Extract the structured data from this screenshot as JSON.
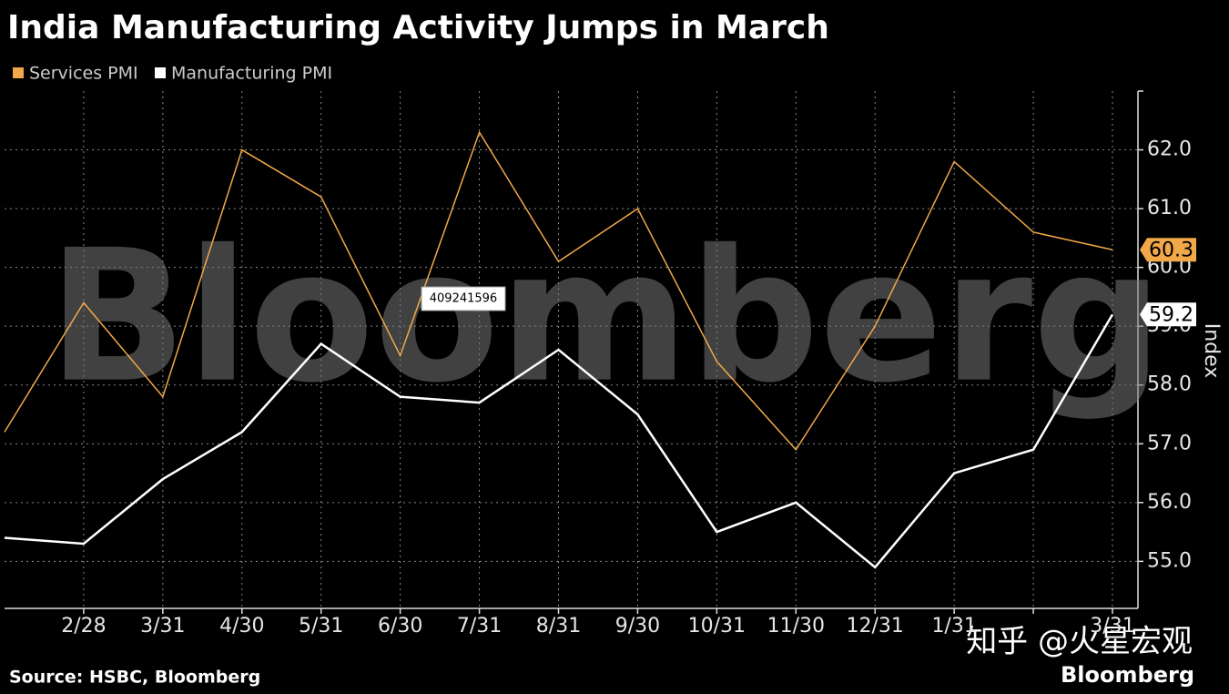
{
  "chart_data": {
    "type": "line",
    "title": "India Manufacturing Activity Jumps in March",
    "y_label": "Index",
    "source": "Source: HSBC, Bloomberg",
    "watermark": "Bloomberg",
    "logo": "Bloomberg",
    "annotations": [
      "409241596",
      "知乎 @火星宏观"
    ],
    "categories": [
      null,
      "2/28",
      "3/31",
      "4/30",
      "5/31",
      "6/30",
      "7/31",
      "8/31",
      "9/30",
      "10/31",
      "11/30",
      "12/31",
      "1/31",
      null,
      "3/31"
    ],
    "series": [
      {
        "name": "Services PMI",
        "color": "#f0a848",
        "values": [
          57.2,
          59.4,
          57.8,
          62.0,
          61.2,
          58.5,
          62.3,
          60.1,
          61.0,
          58.4,
          56.9,
          59.0,
          61.8,
          60.6,
          60.3
        ]
      },
      {
        "name": "Manufacturing PMI",
        "color": "#ffffff",
        "values": [
          55.4,
          55.3,
          56.4,
          57.2,
          58.7,
          57.8,
          57.7,
          58.6,
          57.5,
          55.5,
          56.0,
          54.9,
          56.5,
          56.9,
          59.2
        ]
      }
    ],
    "ylim": [
      54.2,
      63.0
    ],
    "yticks": [
      {
        "value": 55,
        "label": "55.0"
      },
      {
        "value": 56,
        "label": "56.0"
      },
      {
        "value": 57,
        "label": "57.0"
      },
      {
        "value": 58,
        "label": "58.0"
      },
      {
        "value": 59,
        "label": "59.0"
      },
      {
        "value": 60,
        "label": "60.0"
      },
      {
        "value": 61,
        "label": "61.0"
      },
      {
        "value": 62,
        "label": "62.0"
      }
    ],
    "grid": true
  }
}
